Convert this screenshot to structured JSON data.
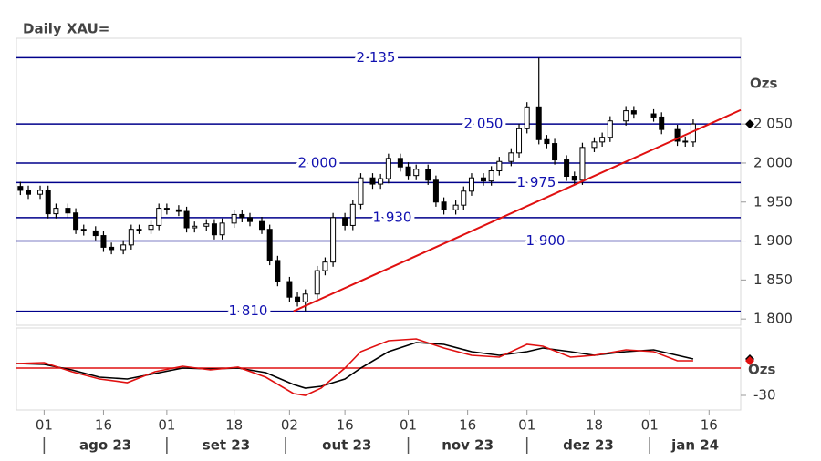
{
  "chart_data": [
    {
      "type": "candlestick",
      "title": "Daily XAU=",
      "ylabel": "Ozs",
      "x": [
        "2023-07-26",
        "2023-07-28",
        "2023-07-31",
        "2023-08-02",
        "2023-08-04",
        "2023-08-07",
        "2023-08-09",
        "2023-08-11",
        "2023-08-14",
        "2023-08-16",
        "2023-08-18",
        "2023-08-21",
        "2023-08-23",
        "2023-08-25",
        "2023-08-28",
        "2023-08-30",
        "2023-09-01",
        "2023-09-04",
        "2023-09-06",
        "2023-09-08",
        "2023-09-11",
        "2023-09-13",
        "2023-09-15",
        "2023-09-18",
        "2023-09-20",
        "2023-09-22",
        "2023-09-25",
        "2023-09-27",
        "2023-09-29",
        "2023-10-02",
        "2023-10-04",
        "2023-10-06",
        "2023-10-09",
        "2023-10-11",
        "2023-10-13",
        "2023-10-16",
        "2023-10-18",
        "2023-10-20",
        "2023-10-23",
        "2023-10-25",
        "2023-10-27",
        "2023-10-30",
        "2023-11-01",
        "2023-11-03",
        "2023-11-06",
        "2023-11-08",
        "2023-11-10",
        "2023-11-13",
        "2023-11-15",
        "2023-11-17",
        "2023-11-20",
        "2023-11-22",
        "2023-11-24",
        "2023-11-27",
        "2023-11-29",
        "2023-12-01",
        "2023-12-04",
        "2023-12-06",
        "2023-12-08",
        "2023-12-11",
        "2023-12-13",
        "2023-12-15",
        "2023-12-18",
        "2023-12-20",
        "2023-12-22",
        "2023-12-26",
        "2023-12-28",
        "2024-01-02",
        "2024-01-04",
        "2024-01-08",
        "2024-01-10",
        "2024-01-12"
      ],
      "open": [
        1970,
        1965,
        1960,
        1965,
        1935,
        1942,
        1936,
        1915,
        1913,
        1907,
        1892,
        1889,
        1895,
        1915,
        1915,
        1920,
        1942,
        1940,
        1938,
        1917,
        1919,
        1922,
        1908,
        1923,
        1934,
        1930,
        1925,
        1915,
        1875,
        1848,
        1828,
        1822,
        1832,
        1862,
        1873,
        1930,
        1920,
        1947,
        1981,
        1973,
        1980,
        2006,
        1995,
        1984,
        1992,
        1978,
        1950,
        1940,
        1946,
        1964,
        1981,
        1977,
        1990,
        2002,
        2013,
        2044,
        2072,
        2030,
        2025,
        2004,
        1983,
        1978,
        2020,
        2027,
        2033,
        2054,
        2067,
        2063,
        2059,
        2043,
        2028,
        2027
      ],
      "high": [
        1976,
        1971,
        1971,
        1971,
        1948,
        1948,
        1942,
        1921,
        1919,
        1913,
        1898,
        1901,
        1921,
        1921,
        1926,
        1948,
        1948,
        1946,
        1944,
        1925,
        1928,
        1928,
        1929,
        1940,
        1940,
        1936,
        1931,
        1921,
        1881,
        1854,
        1834,
        1838,
        1868,
        1879,
        1936,
        1936,
        1953,
        1987,
        1987,
        1986,
        2012,
        2012,
        2001,
        1998,
        1998,
        1984,
        1956,
        1952,
        1970,
        1987,
        1987,
        1996,
        2008,
        2019,
        2050,
        2078,
        2135,
        2036,
        2031,
        2010,
        1989,
        2026,
        2033,
        2039,
        2060,
        2073,
        2073,
        2069,
        2065,
        2049,
        2034,
        2056
      ],
      "low": [
        1959,
        1954,
        1954,
        1929,
        1929,
        1930,
        1909,
        1907,
        1901,
        1886,
        1883,
        1883,
        1889,
        1909,
        1909,
        1914,
        1934,
        1932,
        1911,
        1911,
        1913,
        1902,
        1902,
        1917,
        1924,
        1919,
        1909,
        1869,
        1842,
        1822,
        1816,
        1810,
        1826,
        1856,
        1867,
        1914,
        1914,
        1941,
        1967,
        1967,
        1974,
        1989,
        1978,
        1978,
        1972,
        1944,
        1934,
        1934,
        1940,
        1958,
        1971,
        1971,
        1984,
        1996,
        2007,
        2038,
        2024,
        2019,
        1998,
        1977,
        1972,
        1972,
        2014,
        2021,
        2027,
        2048,
        2057,
        2053,
        2037,
        2022,
        2021,
        2021
      ],
      "close": [
        1965,
        1960,
        1965,
        1935,
        1942,
        1936,
        1915,
        1913,
        1907,
        1892,
        1889,
        1895,
        1915,
        1915,
        1920,
        1942,
        1940,
        1938,
        1917,
        1919,
        1922,
        1908,
        1923,
        1934,
        1930,
        1925,
        1915,
        1875,
        1848,
        1828,
        1822,
        1832,
        1862,
        1873,
        1930,
        1920,
        1947,
        1981,
        1973,
        1980,
        2006,
        1995,
        1984,
        1992,
        1978,
        1950,
        1940,
        1946,
        1964,
        1981,
        1977,
        1990,
        2002,
        2013,
        2044,
        2072,
        2030,
        2025,
        2004,
        1983,
        1978,
        2020,
        2027,
        2033,
        2054,
        2067,
        2063,
        2059,
        2043,
        2028,
        2027,
        2050
      ],
      "xlim": [
        "2023-07-25",
        "2024-01-24"
      ],
      "xticks": [
        {
          "value": "2023-08-01",
          "label": "01"
        },
        {
          "value": "2023-08-16",
          "label": "16"
        },
        {
          "value": "2023-09-01",
          "label": "01"
        },
        {
          "value": "2023-09-18",
          "label": "18"
        },
        {
          "value": "2023-10-02",
          "label": "02"
        },
        {
          "value": "2023-10-16",
          "label": "16"
        },
        {
          "value": "2023-11-01",
          "label": "01"
        },
        {
          "value": "2023-11-16",
          "label": "16"
        },
        {
          "value": "2023-12-01",
          "label": "01"
        },
        {
          "value": "2023-12-18",
          "label": "18"
        },
        {
          "value": "2024-01-01",
          "label": "01"
        },
        {
          "value": "2024-01-16",
          "label": "16"
        }
      ],
      "month_labels": [
        {
          "value": "2023-08-01",
          "label": "ago 23"
        },
        {
          "value": "2023-09-01",
          "label": "set 23"
        },
        {
          "value": "2023-10-01",
          "label": "out 23"
        },
        {
          "value": "2023-11-01",
          "label": "nov 23"
        },
        {
          "value": "2023-12-01",
          "label": "dez 23"
        },
        {
          "value": "2024-01-01",
          "label": "jan 24"
        }
      ],
      "ylim": [
        1792,
        2160
      ],
      "yticks": [
        {
          "value": 1800,
          "label": "1 800"
        },
        {
          "value": 1850,
          "label": "1 850"
        },
        {
          "value": 1900,
          "label": "1 900"
        },
        {
          "value": 1950,
          "label": "1 950"
        },
        {
          "value": 2000,
          "label": "2 000"
        },
        {
          "value": 2050,
          "label": "2 050"
        }
      ],
      "levels": [
        {
          "value": 2135,
          "label": "2 135"
        },
        {
          "value": 2050,
          "label": "2 050"
        },
        {
          "value": 2000,
          "label": "2 000"
        },
        {
          "value": 1975,
          "label": "1 975"
        },
        {
          "value": 1930,
          "label": "1 930"
        },
        {
          "value": 1900,
          "label": "1 900"
        },
        {
          "value": 1810,
          "label": "1 810"
        }
      ],
      "level_color": "#00008b",
      "trendline": {
        "x": [
          "2023-10-03",
          "2024-01-24"
        ],
        "y": [
          1810,
          2068
        ],
        "color": "#e01010"
      }
    },
    {
      "type": "line",
      "ylabel": "Ozs",
      "x": [
        "2023-07-25",
        "2023-08-01",
        "2023-08-08",
        "2023-08-15",
        "2023-08-22",
        "2023-08-29",
        "2023-09-05",
        "2023-09-12",
        "2023-09-19",
        "2023-09-26",
        "2023-10-03",
        "2023-10-06",
        "2023-10-10",
        "2023-10-16",
        "2023-10-20",
        "2023-10-27",
        "2023-11-03",
        "2023-11-10",
        "2023-11-17",
        "2023-11-24",
        "2023-12-01",
        "2023-12-05",
        "2023-12-12",
        "2023-12-18",
        "2023-12-26",
        "2024-01-02",
        "2024-01-08",
        "2024-01-12"
      ],
      "series": [
        {
          "color": "#000000",
          "values": [
            5,
            4,
            -2,
            -10,
            -12,
            -6,
            0,
            -1,
            0,
            -5,
            -18,
            -22,
            -20,
            -12,
            0,
            18,
            28,
            26,
            18,
            14,
            18,
            22,
            18,
            14,
            18,
            20,
            14,
            10
          ]
        },
        {
          "color": "#e01010",
          "values": [
            5,
            6,
            -4,
            -12,
            -16,
            -4,
            2,
            -2,
            1,
            -10,
            -28,
            -30,
            -22,
            0,
            18,
            30,
            32,
            22,
            14,
            12,
            26,
            24,
            12,
            14,
            20,
            18,
            8,
            8
          ]
        }
      ],
      "reference_line": 0,
      "ylim": [
        -46,
        44
      ],
      "yticks": [
        -30
      ]
    }
  ]
}
